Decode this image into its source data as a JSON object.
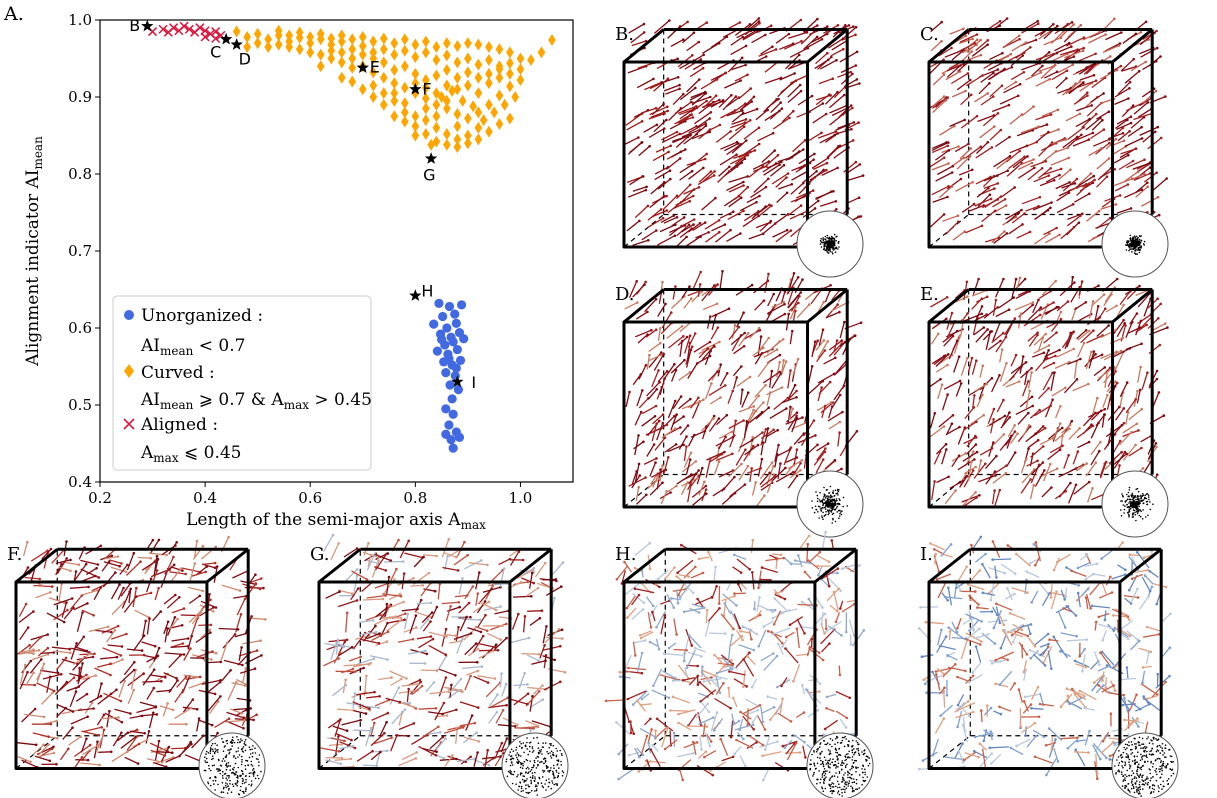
{
  "chart_data": [
    {
      "type": "scatter",
      "panel_label": "A.",
      "xlabel": "Length of the semi-major axis A",
      "xlabel_sub": "max",
      "ylabel": "Alignment indicator AI",
      "ylabel_sub": "mean",
      "xlim": [
        0.2,
        1.1
      ],
      "ylim": [
        0.4,
        1.0
      ],
      "xticks": [
        "0.2",
        "0.4",
        "0.6",
        "0.8",
        "1.0"
      ],
      "yticks": [
        "0.4",
        "0.5",
        "0.6",
        "0.7",
        "0.8",
        "0.9",
        "1.0"
      ],
      "legend_position": "lower-left",
      "series": [
        {
          "name": "Unorganized",
          "marker": "circle",
          "color": "#4169e1",
          "legend_line1": "Unorganized :",
          "legend_line2_main": "AI",
          "legend_line2_sub": "mean",
          "legend_line2_rest": " < 0.7",
          "points": [
            [
              0.845,
              0.632
            ],
            [
              0.865,
              0.628
            ],
            [
              0.888,
              0.63
            ],
            [
              0.852,
              0.615
            ],
            [
              0.875,
              0.618
            ],
            [
              0.835,
              0.605
            ],
            [
              0.86,
              0.6
            ],
            [
              0.878,
              0.606
            ],
            [
              0.848,
              0.592
            ],
            [
              0.868,
              0.588
            ],
            [
              0.884,
              0.594
            ],
            [
              0.856,
              0.578
            ],
            [
              0.872,
              0.582
            ],
            [
              0.892,
              0.586
            ],
            [
              0.842,
              0.57
            ],
            [
              0.862,
              0.566
            ],
            [
              0.88,
              0.572
            ],
            [
              0.854,
              0.556
            ],
            [
              0.87,
              0.552
            ],
            [
              0.886,
              0.558
            ],
            [
              0.858,
              0.542
            ],
            [
              0.876,
              0.538
            ],
            [
              0.866,
              0.526
            ],
            [
              0.882,
              0.52
            ],
            [
              0.87,
              0.508
            ],
            [
              0.858,
              0.495
            ],
            [
              0.872,
              0.488
            ],
            [
              0.864,
              0.474
            ],
            [
              0.878,
              0.465
            ],
            [
              0.868,
              0.455
            ],
            [
              0.884,
              0.458
            ],
            [
              0.872,
              0.444
            ],
            [
              0.858,
              0.462
            ],
            [
              0.85,
              0.585
            ],
            [
              0.864,
              0.56
            ],
            [
              0.878,
              0.548
            ]
          ]
        },
        {
          "name": "Curved",
          "marker": "diamond",
          "color": "#ffa500",
          "legend_line1": "Curved :",
          "legend_line2_main": "AI",
          "legend_line2_sub": "mean",
          "legend_line2_rest": " ⩾ 0.7 & A",
          "legend_line2_sub2": "max",
          "legend_line2_rest2": " > 0.45",
          "points": [
            [
              0.46,
              0.985
            ],
            [
              0.48,
              0.978
            ],
            [
              0.5,
              0.982
            ],
            [
              0.52,
              0.975
            ],
            [
              0.54,
              0.98
            ],
            [
              0.56,
              0.972
            ],
            [
              0.58,
              0.977
            ],
            [
              0.6,
              0.97
            ],
            [
              0.62,
              0.975
            ],
            [
              0.64,
              0.968
            ],
            [
              0.66,
              0.972
            ],
            [
              0.68,
              0.962
            ],
            [
              0.7,
              0.966
            ],
            [
              0.72,
              0.958
            ],
            [
              0.74,
              0.962
            ],
            [
              0.76,
              0.955
            ],
            [
              0.78,
              0.96
            ],
            [
              0.8,
              0.952
            ],
            [
              0.82,
              0.958
            ],
            [
              0.84,
              0.948
            ],
            [
              0.86,
              0.954
            ],
            [
              0.88,
              0.945
            ],
            [
              0.9,
              0.95
            ],
            [
              0.92,
              0.942
            ],
            [
              0.94,
              0.948
            ],
            [
              0.96,
              0.94
            ],
            [
              0.98,
              0.944
            ],
            [
              1.0,
              0.936
            ],
            [
              1.02,
              0.948
            ],
            [
              1.04,
              0.958
            ],
            [
              1.06,
              0.974
            ],
            [
              0.7,
              0.94
            ],
            [
              0.72,
              0.932
            ],
            [
              0.74,
              0.925
            ],
            [
              0.76,
              0.918
            ],
            [
              0.78,
              0.912
            ],
            [
              0.8,
              0.905
            ],
            [
              0.82,
              0.898
            ],
            [
              0.84,
              0.89
            ],
            [
              0.86,
              0.885
            ],
            [
              0.88,
              0.878
            ],
            [
              0.9,
              0.872
            ],
            [
              0.92,
              0.88
            ],
            [
              0.94,
              0.89
            ],
            [
              0.96,
              0.902
            ],
            [
              0.98,
              0.914
            ],
            [
              0.82,
              0.87
            ],
            [
              0.84,
              0.86
            ],
            [
              0.86,
              0.852
            ],
            [
              0.88,
              0.845
            ],
            [
              0.8,
              0.85
            ],
            [
              0.83,
              0.838
            ],
            [
              0.78,
              0.88
            ],
            [
              0.76,
              0.895
            ],
            [
              0.74,
              0.905
            ],
            [
              0.72,
              0.915
            ],
            [
              0.86,
              0.915
            ],
            [
              0.88,
              0.925
            ],
            [
              0.9,
              0.932
            ],
            [
              0.92,
              0.905
            ],
            [
              0.94,
              0.918
            ],
            [
              0.96,
              0.925
            ],
            [
              0.98,
              0.93
            ],
            [
              0.92,
              0.86
            ],
            [
              0.9,
              0.85
            ],
            [
              0.88,
              0.862
            ],
            [
              0.84,
              0.875
            ],
            [
              0.85,
              0.9
            ],
            [
              0.87,
              0.908
            ],
            [
              0.89,
              0.895
            ],
            [
              0.91,
              0.888
            ],
            [
              0.93,
              0.87
            ],
            [
              0.95,
              0.88
            ],
            [
              0.97,
              0.89
            ],
            [
              0.99,
              0.9
            ],
            [
              0.64,
              0.95
            ],
            [
              0.66,
              0.945
            ],
            [
              0.68,
              0.938
            ],
            [
              0.62,
              0.955
            ],
            [
              0.6,
              0.958
            ],
            [
              0.58,
              0.962
            ],
            [
              0.56,
              0.965
            ],
            [
              0.54,
              0.968
            ],
            [
              0.52,
              0.965
            ],
            [
              0.5,
              0.97
            ],
            [
              0.48,
              0.965
            ],
            [
              0.66,
              0.925
            ],
            [
              0.68,
              0.92
            ],
            [
              0.7,
              0.91
            ],
            [
              0.72,
              0.9
            ],
            [
              0.74,
              0.89
            ],
            [
              0.76,
              0.875
            ],
            [
              0.78,
              0.868
            ],
            [
              0.8,
              0.862
            ],
            [
              0.82,
              0.852
            ],
            [
              0.84,
              0.842
            ],
            [
              0.86,
              0.838
            ],
            [
              0.88,
              0.835
            ],
            [
              0.9,
              0.84
            ],
            [
              0.92,
              0.845
            ],
            [
              0.94,
              0.855
            ],
            [
              0.96,
              0.865
            ],
            [
              0.98,
              0.872
            ],
            [
              1.0,
              0.922
            ],
            [
              1.0,
              0.95
            ],
            [
              0.98,
              0.958
            ],
            [
              0.96,
              0.962
            ],
            [
              0.94,
              0.965
            ],
            [
              0.92,
              0.968
            ],
            [
              0.9,
              0.97
            ],
            [
              0.88,
              0.966
            ],
            [
              0.86,
              0.97
            ],
            [
              0.84,
              0.965
            ],
            [
              0.82,
              0.972
            ],
            [
              0.8,
              0.968
            ],
            [
              0.78,
              0.975
            ],
            [
              0.76,
              0.97
            ],
            [
              0.74,
              0.976
            ],
            [
              0.72,
              0.972
            ],
            [
              0.7,
              0.978
            ],
            [
              0.68,
              0.975
            ],
            [
              0.66,
              0.98
            ],
            [
              0.64,
              0.976
            ],
            [
              0.62,
              0.982
            ],
            [
              0.6,
              0.978
            ],
            [
              0.58,
              0.984
            ],
            [
              0.56,
              0.98
            ],
            [
              0.54,
              0.986
            ],
            [
              0.8,
              0.93
            ],
            [
              0.82,
              0.922
            ],
            [
              0.84,
              0.928
            ],
            [
              0.86,
              0.935
            ],
            [
              0.88,
              0.91
            ],
            [
              0.9,
              0.915
            ],
            [
              0.92,
              0.925
            ],
            [
              0.94,
              0.93
            ],
            [
              0.96,
              0.936
            ],
            [
              0.78,
              0.94
            ],
            [
              0.76,
              0.935
            ],
            [
              0.74,
              0.945
            ],
            [
              0.72,
              0.95
            ],
            [
              0.7,
              0.955
            ],
            [
              0.68,
              0.95
            ],
            [
              0.66,
              0.958
            ],
            [
              0.64,
              0.96
            ],
            [
              0.62,
              0.94
            ],
            [
              0.86,
              0.895
            ],
            [
              0.84,
              0.905
            ],
            [
              0.82,
              0.912
            ],
            [
              0.8,
              0.918
            ],
            [
              0.82,
              0.885
            ],
            [
              0.8,
              0.875
            ],
            [
              0.78,
              0.892
            ],
            [
              0.76,
              0.905
            ]
          ]
        },
        {
          "name": "Aligned",
          "marker": "x",
          "color": "#dc143c",
          "legend_line1": "Aligned :",
          "legend_line2_main": "A",
          "legend_line2_sub": "max",
          "legend_line2_rest": " ⩽ 0.45",
          "points": [
            [
              0.3,
              0.985
            ],
            [
              0.32,
              0.988
            ],
            [
              0.34,
              0.99
            ],
            [
              0.35,
              0.986
            ],
            [
              0.37,
              0.988
            ],
            [
              0.38,
              0.984
            ],
            [
              0.39,
              0.99
            ],
            [
              0.4,
              0.986
            ],
            [
              0.41,
              0.982
            ],
            [
              0.42,
              0.985
            ],
            [
              0.43,
              0.98
            ],
            [
              0.36,
              0.992
            ],
            [
              0.33,
              0.984
            ],
            [
              0.4,
              0.978
            ],
            [
              0.42,
              0.976
            ]
          ]
        }
      ],
      "annotations": [
        {
          "label": "B",
          "x": 0.29,
          "y": 0.992,
          "dx": -18,
          "dy": 5
        },
        {
          "label": "C",
          "x": 0.44,
          "y": 0.975,
          "dx": -16,
          "dy": 18
        },
        {
          "label": "D",
          "x": 0.46,
          "y": 0.968,
          "dx": 2,
          "dy": 20
        },
        {
          "label": "E",
          "x": 0.7,
          "y": 0.938,
          "dx": 7,
          "dy": 5
        },
        {
          "label": "F",
          "x": 0.8,
          "y": 0.91,
          "dx": 7,
          "dy": 5
        },
        {
          "label": "G",
          "x": 0.83,
          "y": 0.82,
          "dx": -8,
          "dy": 22
        },
        {
          "label": "H",
          "x": 0.8,
          "y": 0.642,
          "dx": 6,
          "dy": 1
        },
        {
          "label": "I",
          "x": 0.88,
          "y": 0.53,
          "dx": 14,
          "dy": 6
        }
      ]
    }
  ],
  "cube_panels": [
    {
      "label": "B.",
      "palette": [
        "#8b0a14",
        "#a01818",
        "#7a0a10"
      ],
      "disk": "tight"
    },
    {
      "label": "C.",
      "palette": [
        "#8b0a14",
        "#a32020",
        "#c46050",
        "#7a0a10"
      ],
      "disk": "tight"
    },
    {
      "label": "D.",
      "palette": [
        "#8b0a14",
        "#a32020",
        "#c87a60",
        "#7a0a10"
      ],
      "disk": "medium"
    },
    {
      "label": "E.",
      "palette": [
        "#8b0a14",
        "#a32020",
        "#c87a60",
        "#7a0a10"
      ],
      "disk": "medium"
    },
    {
      "label": "F.",
      "palette": [
        "#8b0a14",
        "#b03028",
        "#d08a70",
        "#7a0a10"
      ],
      "disk": "wide"
    },
    {
      "label": "G.",
      "palette": [
        "#9a1818",
        "#c05040",
        "#d89a80",
        "#a9b8cc",
        "#7a0a10"
      ],
      "disk": "wide"
    },
    {
      "label": "H.",
      "palette": [
        "#c86048",
        "#e0a080",
        "#b8c8dc",
        "#8fa8cc",
        "#a02020"
      ],
      "disk": "scatter"
    },
    {
      "label": "I.",
      "palette": [
        "#c86048",
        "#e0a080",
        "#b8c8dc",
        "#7f9fd0",
        "#6688c0"
      ],
      "disk": "scatter"
    }
  ]
}
